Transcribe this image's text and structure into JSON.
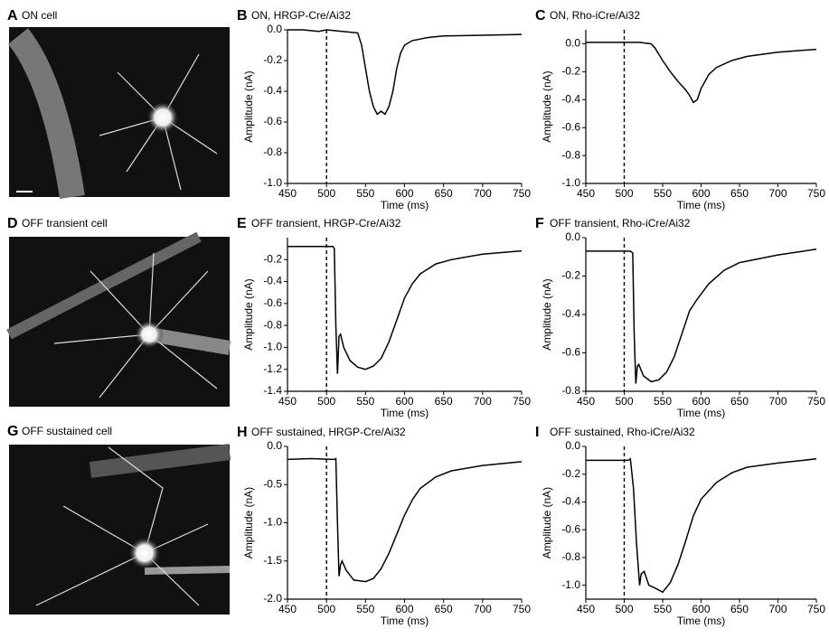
{
  "images": [
    {
      "panel": "A",
      "label": "ON cell"
    },
    {
      "panel": "D",
      "label": "OFF transient cell"
    },
    {
      "panel": "G",
      "label": "OFF sustained cell"
    }
  ],
  "chart_data": [
    {
      "type": "line",
      "panel": "B",
      "title": "ON, HRGP-Cre/Ai32",
      "xlabel": "Time (ms)",
      "ylabel": "Amplitude (nA)",
      "color": "#000000",
      "vline": 500,
      "x": [
        450,
        470,
        490,
        500,
        520,
        540,
        545,
        550,
        555,
        560,
        565,
        570,
        575,
        580,
        585,
        590,
        595,
        600,
        610,
        630,
        650,
        700,
        750
      ],
      "values": [
        0,
        0,
        -0.01,
        0,
        -0.01,
        -0.02,
        -0.1,
        -0.25,
        -0.4,
        -0.5,
        -0.55,
        -0.53,
        -0.55,
        -0.5,
        -0.4,
        -0.25,
        -0.15,
        -0.1,
        -0.07,
        -0.05,
        -0.04,
        -0.035,
        -0.03
      ],
      "xlim": [
        450,
        750
      ],
      "xticks": [
        450,
        500,
        550,
        600,
        650,
        700,
        750
      ],
      "ylim": [
        -1,
        0
      ],
      "yticks": [
        {
          "value": -1,
          "label": "-1.0"
        },
        -0.8,
        -0.6,
        -0.4,
        -0.2,
        {
          "value": 0,
          "label": "0.0"
        }
      ]
    },
    {
      "type": "line",
      "panel": "C",
      "title": "ON, Rho-iCre/Ai32",
      "xlabel": "Time (ms)",
      "ylabel": "Amplitude (nA)",
      "color": "#000000",
      "vline": 500,
      "x": [
        450,
        480,
        500,
        520,
        535,
        540,
        550,
        560,
        570,
        580,
        585,
        590,
        595,
        600,
        610,
        620,
        640,
        660,
        700,
        750
      ],
      "values": [
        0.01,
        0.01,
        0.01,
        0.01,
        0,
        -0.03,
        -0.12,
        -0.2,
        -0.27,
        -0.33,
        -0.37,
        -0.42,
        -0.4,
        -0.32,
        -0.22,
        -0.17,
        -0.12,
        -0.09,
        -0.06,
        -0.04
      ],
      "xlim": [
        450,
        750
      ],
      "xticks": [
        450,
        500,
        550,
        600,
        650,
        700,
        750
      ],
      "ylim": [
        -1,
        0.1
      ],
      "yticks": [
        {
          "value": -1,
          "label": "-1.0"
        },
        -0.8,
        -0.6,
        -0.4,
        -0.2,
        {
          "value": 0,
          "label": "0.0"
        }
      ]
    },
    {
      "type": "line",
      "panel": "E",
      "title": "OFF transient, HRGP-Cre/Ai32",
      "xlabel": "Time (ms)",
      "ylabel": "Amplitude (nA)",
      "color": "#000000",
      "vline": 500,
      "x": [
        450,
        480,
        508,
        510,
        512,
        514,
        516,
        518,
        522,
        530,
        540,
        550,
        560,
        570,
        580,
        590,
        600,
        610,
        620,
        640,
        660,
        700,
        750
      ],
      "values": [
        -0.08,
        -0.08,
        -0.08,
        -0.1,
        -0.8,
        -1.24,
        -0.9,
        -0.88,
        -1.0,
        -1.12,
        -1.18,
        -1.2,
        -1.17,
        -1.1,
        -0.95,
        -0.75,
        -0.55,
        -0.42,
        -0.33,
        -0.24,
        -0.2,
        -0.15,
        -0.12
      ],
      "xlim": [
        450,
        750
      ],
      "xticks": [
        450,
        500,
        550,
        600,
        650,
        700,
        750
      ],
      "ylim": [
        -1.4,
        0
      ],
      "yticks": [
        -1.4,
        -1.2,
        {
          "value": -1,
          "label": "-1.0"
        },
        -0.8,
        -0.6,
        -0.4,
        -0.2
      ]
    },
    {
      "type": "line",
      "panel": "F",
      "title": "OFF transient, Rho-iCre/Ai32",
      "xlabel": "Time (ms)",
      "ylabel": "Amplitude (nA)",
      "color": "#000000",
      "vline": 500,
      "x": [
        450,
        480,
        508,
        511,
        513,
        515,
        517,
        519,
        525,
        535,
        545,
        555,
        565,
        575,
        585,
        595,
        610,
        630,
        650,
        700,
        750
      ],
      "values": [
        -0.07,
        -0.07,
        -0.07,
        -0.08,
        -0.5,
        -0.76,
        -0.67,
        -0.66,
        -0.72,
        -0.75,
        -0.74,
        -0.7,
        -0.62,
        -0.5,
        -0.38,
        -0.32,
        -0.24,
        -0.17,
        -0.13,
        -0.09,
        -0.06
      ],
      "xlim": [
        450,
        750
      ],
      "xticks": [
        450,
        500,
        550,
        600,
        650,
        700,
        750
      ],
      "ylim": [
        -0.8,
        0
      ],
      "yticks": [
        -0.8,
        -0.6,
        -0.4,
        -0.2,
        {
          "value": 0,
          "label": "0.0"
        }
      ]
    },
    {
      "type": "line",
      "panel": "H",
      "title": "OFF sustained, HRGP-Cre/Ai32",
      "xlabel": "Time (ms)",
      "ylabel": "Amplitude (nA)",
      "color": "#000000",
      "vline": 500,
      "x": [
        450,
        480,
        510,
        512,
        514,
        516,
        518,
        520,
        525,
        535,
        550,
        560,
        570,
        580,
        590,
        600,
        610,
        620,
        640,
        660,
        700,
        750
      ],
      "values": [
        -0.17,
        -0.16,
        -0.17,
        -0.16,
        -1.0,
        -1.7,
        -1.55,
        -1.5,
        -1.62,
        -1.75,
        -1.77,
        -1.73,
        -1.6,
        -1.4,
        -1.15,
        -0.9,
        -0.7,
        -0.55,
        -0.4,
        -0.32,
        -0.25,
        -0.2
      ],
      "xlim": [
        450,
        750
      ],
      "xticks": [
        450,
        500,
        550,
        600,
        650,
        700,
        750
      ],
      "ylim": [
        -2,
        0
      ],
      "yticks": [
        {
          "value": -2,
          "label": "-2.0"
        },
        -1.5,
        {
          "value": -1,
          "label": "-1.0"
        },
        -0.5,
        {
          "value": 0,
          "label": "0.0"
        }
      ]
    },
    {
      "type": "line",
      "panel": "I",
      "title": "OFF sustained, Rho-iCre/Ai32",
      "xlabel": "Time (ms)",
      "ylabel": "Amplitude (nA)",
      "color": "#000000",
      "vline": 500,
      "x": [
        450,
        480,
        505,
        508,
        512,
        516,
        520,
        522,
        526,
        532,
        540,
        550,
        560,
        570,
        580,
        590,
        600,
        620,
        640,
        660,
        700,
        750
      ],
      "values": [
        -0.1,
        -0.1,
        -0.1,
        -0.09,
        -0.3,
        -0.7,
        -1.0,
        -0.92,
        -0.9,
        -1.0,
        -1.02,
        -1.05,
        -0.98,
        -0.85,
        -0.68,
        -0.5,
        -0.38,
        -0.26,
        -0.19,
        -0.15,
        -0.12,
        -0.09
      ],
      "xlim": [
        450,
        750
      ],
      "xticks": [
        450,
        500,
        550,
        600,
        650,
        700,
        750
      ],
      "ylim": [
        -1.1,
        0
      ],
      "yticks": [
        {
          "value": -1,
          "label": "-1.0"
        },
        -0.8,
        -0.6,
        -0.4,
        -0.2,
        {
          "value": 0,
          "label": "0.0"
        }
      ]
    }
  ]
}
